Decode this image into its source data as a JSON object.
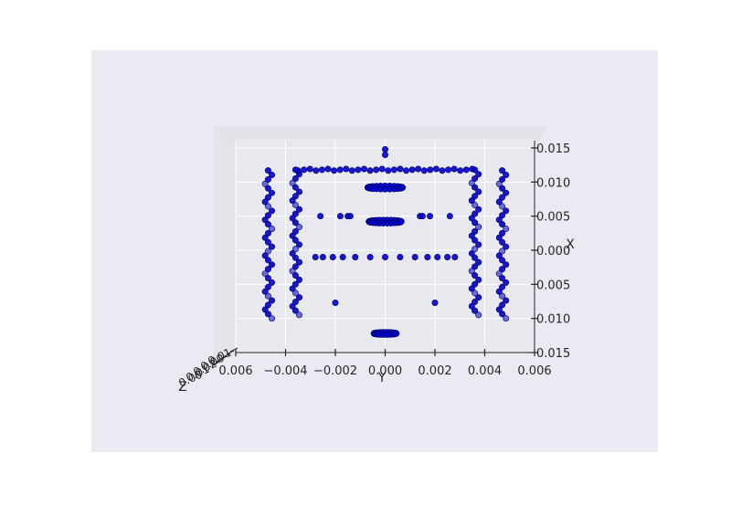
{
  "chart_data": {
    "type": "scatter",
    "projection": "3d",
    "view": "3D axes viewed head-on from along the Z axis; Y horizontal, X vertical (X tick labels rise upward)",
    "xlabel": "Y",
    "ylabel": "X",
    "zlabel": "Z",
    "ylim": [
      -0.006,
      0.006
    ],
    "xlim": [
      -0.015,
      0.015
    ],
    "y_ticks": [
      "0.006",
      "−0.004",
      "−0.002",
      "0.000",
      "0.002",
      "0.004",
      "0.006"
    ],
    "x_ticks": [
      "0.015",
      "0.010",
      "0.005",
      "0.000",
      "0.005",
      "0.010",
      "0.015"
    ],
    "z_ticks_note": "overlapping illegible tick labels at the Z axis",
    "grid": true,
    "style": "seaborn-darkgrid",
    "marker_color": "#0000cc",
    "clusters": [
      {
        "name": "top-mid-circle",
        "kind": "ellipse",
        "y": 0.0,
        "x": 0.0092,
        "ry": 0.0007,
        "rx": 0.0007,
        "n": 24
      },
      {
        "name": "upper-ring",
        "kind": "ellipse",
        "y": 0.0,
        "x": 0.0042,
        "ry": 0.00065,
        "rx": 0.0007,
        "n": 26
      },
      {
        "name": "bottom-ring",
        "kind": "ellipse",
        "y": 0.0,
        "x": -0.0122,
        "ry": 0.00045,
        "rx": 0.0005,
        "n": 22
      },
      {
        "name": "top-row",
        "kind": "line",
        "y": [
          -0.0035,
          0.0035
        ],
        "x": 0.0118,
        "n": 30
      },
      {
        "name": "row-x0.005",
        "kind": "points",
        "ys": [
          -0.0026,
          -0.0018,
          -0.0015,
          -0.0014,
          0.0014,
          0.0015,
          0.0018,
          0.0026
        ],
        "x": 0.005
      },
      {
        "name": "row-x-0.001",
        "kind": "points",
        "ys": [
          -0.0028,
          -0.0025,
          -0.0021,
          -0.0017,
          -0.0012,
          -0.0006,
          0.0,
          0.0006,
          0.0012,
          0.0017,
          0.0021,
          0.0025,
          0.0028
        ],
        "x": -0.001
      },
      {
        "name": "left-column-outer",
        "kind": "column",
        "y": -0.0047,
        "x": [
          -0.01,
          0.0117
        ]
      },
      {
        "name": "left-column-inner",
        "kind": "column",
        "y": -0.0036,
        "x": [
          -0.0095,
          0.0118
        ]
      },
      {
        "name": "right-column-inner",
        "kind": "column",
        "y": 0.0036,
        "x": [
          -0.0095,
          0.0118
        ]
      },
      {
        "name": "right-column-outer",
        "kind": "column",
        "y": 0.0047,
        "x": [
          -0.01,
          0.0117
        ]
      },
      {
        "name": "bottom-mid-pair",
        "kind": "points",
        "ys": [
          -0.002,
          0.002
        ],
        "x": -0.0077
      }
    ]
  }
}
